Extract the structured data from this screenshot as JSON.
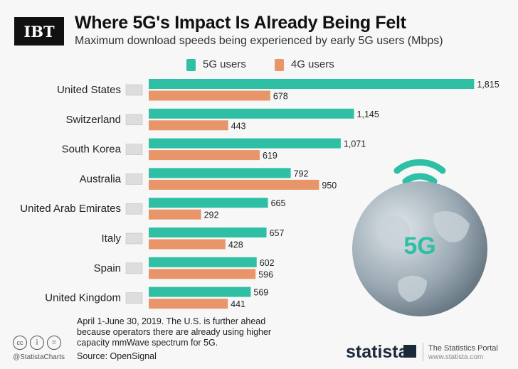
{
  "header": {
    "logo": "IBT",
    "title": "Where 5G's Impact Is Already Being Felt",
    "subtitle": "Maximum download speeds being experienced by early 5G users (Mbps)"
  },
  "chart_data": {
    "type": "bar",
    "orientation": "horizontal",
    "title": "Where 5G's Impact Is Already Being Felt",
    "subtitle": "Maximum download speeds being experienced by early 5G users (Mbps)",
    "categories": [
      "United States",
      "Switzerland",
      "South Korea",
      "Australia",
      "United Arab Emirates",
      "Italy",
      "Spain",
      "United Kingdom"
    ],
    "series": [
      {
        "name": "5G users",
        "color": "#2ebfa5",
        "values": [
          1815,
          1145,
          1071,
          792,
          665,
          657,
          602,
          569
        ],
        "labels": [
          "1,815",
          "1,145",
          "1,071",
          "792",
          "665",
          "657",
          "602",
          "569"
        ]
      },
      {
        "name": "4G users",
        "color": "#e8956a",
        "values": [
          678,
          443,
          619,
          950,
          292,
          428,
          596,
          441
        ],
        "labels": [
          "678",
          "443",
          "619",
          "950",
          "292",
          "428",
          "596",
          "441"
        ]
      }
    ],
    "legend": "top",
    "grid": false
  },
  "illustration": {
    "globe_text": "5G"
  },
  "footer": {
    "note": [
      "April 1-June 30, 2019. The U.S. is further ahead",
      "because operators there are already using higher",
      "capacity mmWave spectrum for 5G."
    ],
    "source": "Source: OpenSignal",
    "handle": "@StatistaCharts",
    "brand": "statista",
    "portal": "The Statistics Portal",
    "url": "www.statista.com"
  }
}
